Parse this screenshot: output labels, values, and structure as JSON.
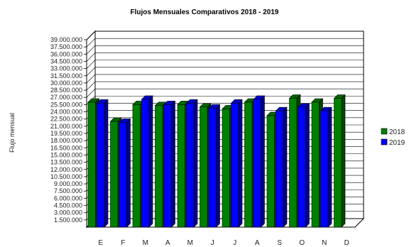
{
  "chart_data": {
    "type": "bar",
    "title": "Flujos Mensuales Comparativos 2018 - 2019",
    "ylabel": "Flujo mensual",
    "xlabel": "",
    "categories": [
      "E",
      "F",
      "M",
      "A",
      "M",
      "J",
      "J",
      "A",
      "S",
      "O",
      "N",
      "D"
    ],
    "ylim": [
      0,
      39000000
    ],
    "ytick_labels": [
      "1.500.000",
      "3.000.000",
      "4.500.000",
      "6.000.000",
      "7.500.000",
      "9.000.000",
      "10.500.000",
      "12.000.000",
      "13.500.000",
      "15.000.000",
      "16.500.000",
      "18.000.000",
      "19.500.000",
      "21.000.000",
      "22.500.000",
      "24.000.000",
      "25.500.000",
      "27.000.000",
      "28.500.000",
      "30.000.000",
      "31.500.000",
      "33.000.000",
      "34.500.000",
      "36.000.000",
      "37.500.000",
      "39.000.000"
    ],
    "grid": true,
    "legend_position": "right",
    "series": [
      {
        "name": "2018",
        "color": "#008000",
        "values": [
          26000000,
          22000000,
          25500000,
          25300000,
          25500000,
          25000000,
          24600000,
          26000000,
          23200000,
          26800000,
          26000000,
          26800000
        ]
      },
      {
        "name": "2019",
        "color": "#0000ff",
        "values": [
          25800000,
          21800000,
          26600000,
          25500000,
          25800000,
          24800000,
          25800000,
          26600000,
          24200000,
          25000000,
          24200000,
          null
        ]
      }
    ]
  }
}
